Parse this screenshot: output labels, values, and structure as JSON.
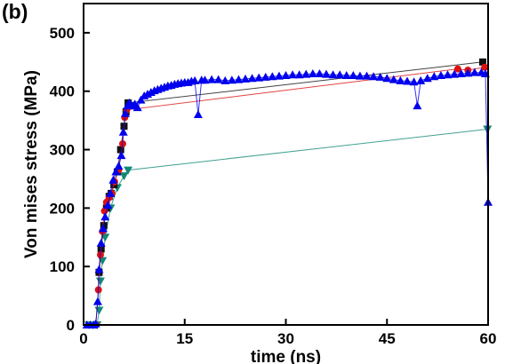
{
  "panel_label": "(b)",
  "chart_data": {
    "type": "scatter",
    "xlabel": "time (ns)",
    "ylabel": "Von mises stress (MPa)",
    "xlim": [
      0,
      60
    ],
    "ylim": [
      0,
      550
    ],
    "xticks": [
      0,
      15,
      30,
      45,
      60
    ],
    "yticks": [
      0,
      100,
      200,
      300,
      400,
      500
    ],
    "grid": false,
    "legend": "none",
    "series": [
      {
        "color": "#0000ee",
        "marker": "triangle-up",
        "points": [
          [
            0.5,
            0
          ],
          [
            1,
            0
          ],
          [
            1.5,
            0
          ],
          [
            1.8,
            2
          ],
          [
            2.1,
            40
          ],
          [
            2.3,
            95
          ],
          [
            2.6,
            140
          ],
          [
            2.9,
            165
          ],
          [
            3.2,
            185
          ],
          [
            3.6,
            205
          ],
          [
            4.0,
            225
          ],
          [
            4.4,
            248
          ],
          [
            4.8,
            262
          ],
          [
            5.2,
            272
          ],
          [
            5.6,
            290
          ],
          [
            5.9,
            330
          ],
          [
            6.2,
            362
          ],
          [
            6.5,
            375
          ],
          [
            6.8,
            380
          ],
          [
            7.2,
            375
          ],
          [
            7.6,
            378
          ],
          [
            8.0,
            372
          ],
          [
            8.5,
            385
          ],
          [
            9.0,
            392
          ],
          [
            9.5,
            395
          ],
          [
            10,
            398
          ],
          [
            10.5,
            401
          ],
          [
            11,
            403
          ],
          [
            11.5,
            405
          ],
          [
            12,
            407
          ],
          [
            12.5,
            409
          ],
          [
            13,
            410
          ],
          [
            13.5,
            412
          ],
          [
            14,
            413
          ],
          [
            14.5,
            414
          ],
          [
            15,
            415
          ],
          [
            15.5,
            415
          ],
          [
            16,
            417
          ],
          [
            16.5,
            418
          ],
          [
            17,
            360
          ],
          [
            17.5,
            419
          ],
          [
            18,
            419
          ],
          [
            19,
            420
          ],
          [
            20,
            420
          ],
          [
            21,
            418
          ],
          [
            22,
            419
          ],
          [
            23,
            420
          ],
          [
            24,
            421
          ],
          [
            25,
            422
          ],
          [
            26,
            423
          ],
          [
            27,
            424
          ],
          [
            28,
            425
          ],
          [
            29,
            426
          ],
          [
            30,
            427
          ],
          [
            31,
            428
          ],
          [
            32,
            428
          ],
          [
            33,
            429
          ],
          [
            34,
            430
          ],
          [
            35,
            430
          ],
          [
            36,
            429
          ],
          [
            37,
            428
          ],
          [
            38,
            428
          ],
          [
            39,
            427
          ],
          [
            40,
            427
          ],
          [
            41,
            426
          ],
          [
            42,
            426
          ],
          [
            43,
            425
          ],
          [
            44,
            424
          ],
          [
            45,
            422
          ],
          [
            46,
            420
          ],
          [
            47,
            418
          ],
          [
            48,
            417
          ],
          [
            49,
            416
          ],
          [
            49.5,
            375
          ],
          [
            50,
            418
          ],
          [
            51,
            422
          ],
          [
            52,
            425
          ],
          [
            53,
            427
          ],
          [
            54,
            428
          ],
          [
            55,
            429
          ],
          [
            56,
            430
          ],
          [
            57,
            431
          ],
          [
            58,
            432
          ],
          [
            59,
            432
          ],
          [
            59.6,
            430
          ],
          [
            60,
            210
          ]
        ]
      },
      {
        "color": "#dd1111",
        "marker": "circle",
        "points": [
          [
            1.8,
            0
          ],
          [
            2.2,
            60
          ],
          [
            2.5,
            120
          ],
          [
            2.8,
            160
          ],
          [
            3.1,
            195
          ],
          [
            3.4,
            210
          ],
          [
            3.8,
            218
          ],
          [
            4.2,
            225
          ],
          [
            4.6,
            245
          ],
          [
            5.2,
            265
          ],
          [
            5.8,
            310
          ],
          [
            6.1,
            355
          ],
          [
            6.4,
            368
          ],
          [
            55.5,
            438
          ],
          [
            57,
            436
          ],
          [
            59.5,
            441
          ]
        ]
      },
      {
        "color": "#111111",
        "marker": "square",
        "points": [
          [
            2.3,
            90
          ],
          [
            2.6,
            130
          ],
          [
            3.0,
            170
          ],
          [
            3.4,
            200
          ],
          [
            3.8,
            220
          ],
          [
            4.1,
            225
          ],
          [
            4.5,
            240
          ],
          [
            5.0,
            262
          ],
          [
            5.5,
            300
          ],
          [
            6.0,
            340
          ],
          [
            6.3,
            365
          ],
          [
            6.6,
            380
          ],
          [
            59.2,
            450
          ]
        ]
      },
      {
        "color": "#118877",
        "marker": "triangle-down",
        "points": [
          [
            0.8,
            0
          ],
          [
            1.4,
            0
          ],
          [
            2.0,
            0
          ],
          [
            2.3,
            25
          ],
          [
            2.5,
            75
          ],
          [
            2.8,
            110
          ],
          [
            3.2,
            150
          ],
          [
            4.0,
            200
          ],
          [
            5.0,
            235
          ],
          [
            6.0,
            255
          ],
          [
            6.6,
            265
          ],
          [
            59.9,
            335
          ]
        ]
      }
    ]
  }
}
